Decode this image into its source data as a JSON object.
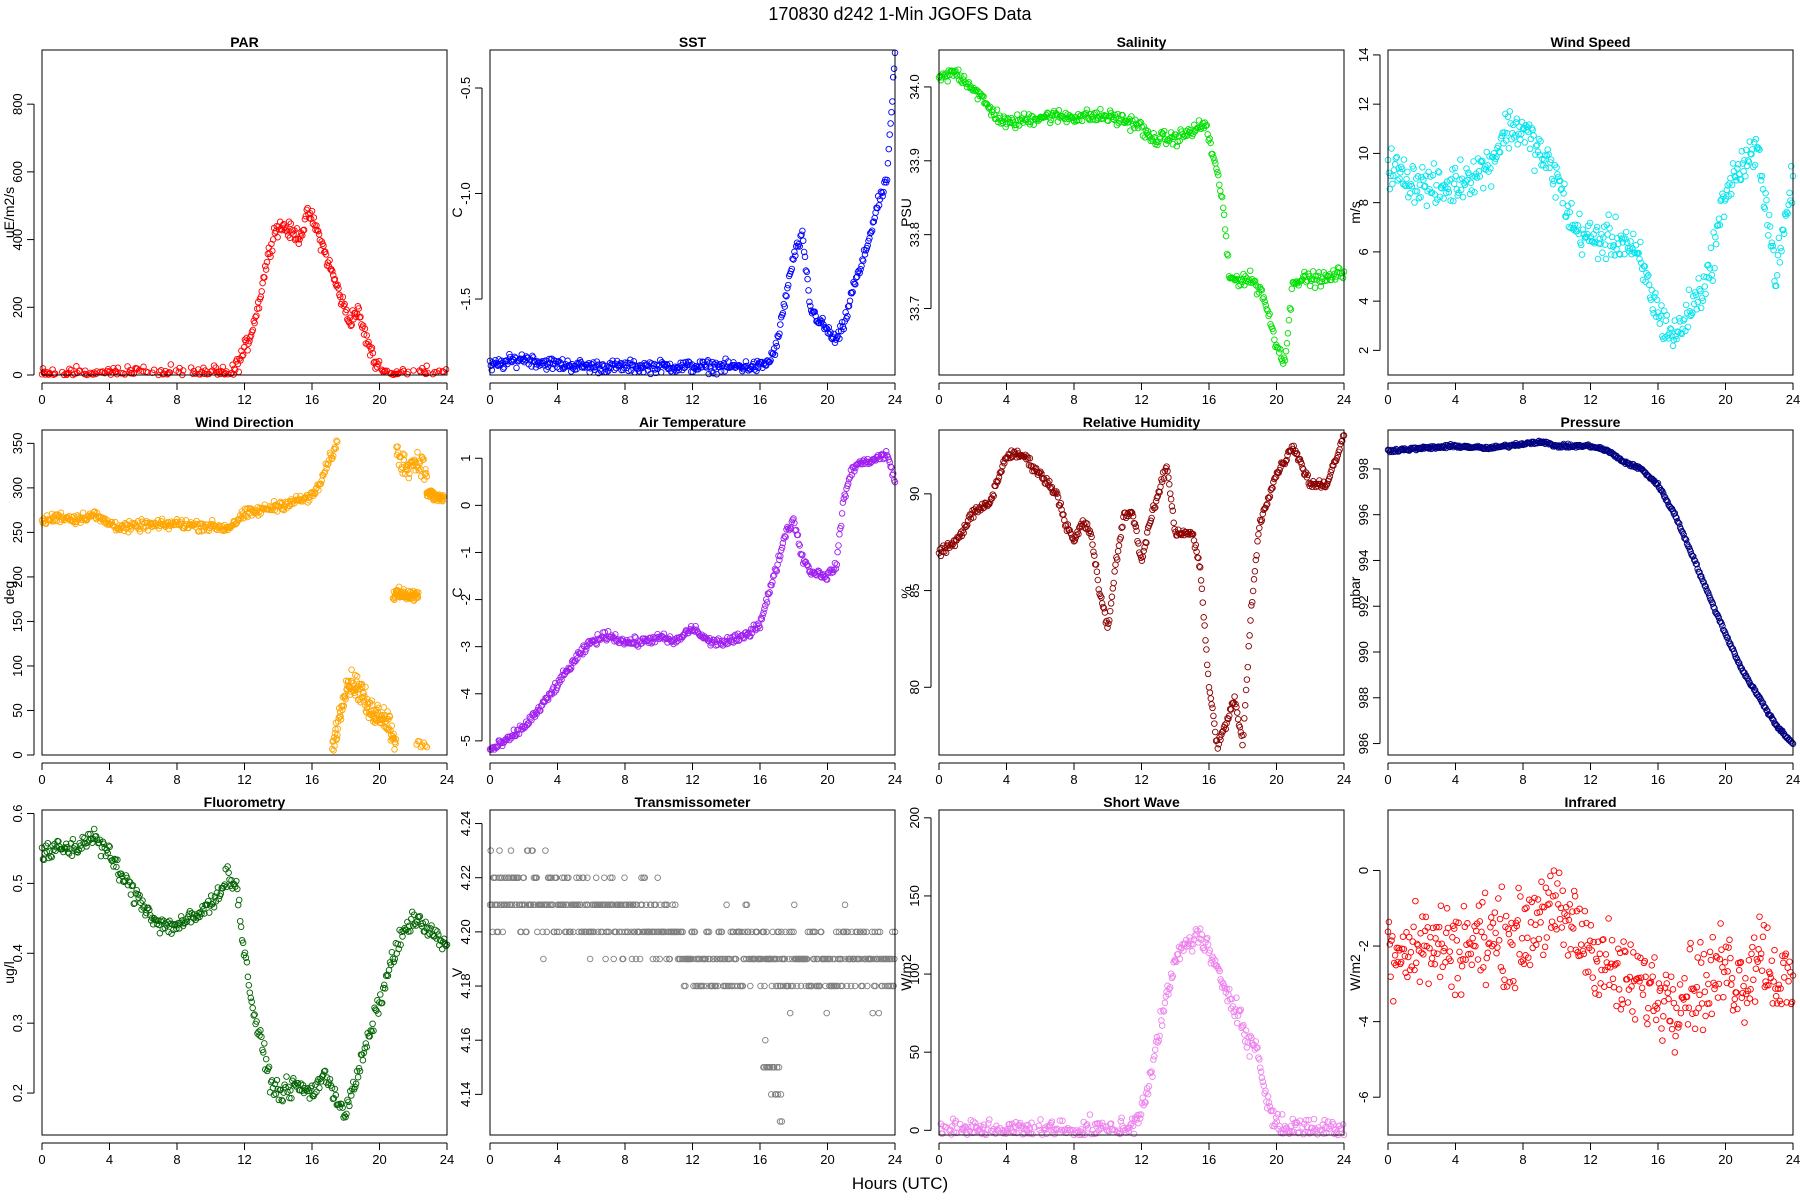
{
  "page": {
    "title": "170830   d242   1-Min  JGOFS Data",
    "xlabel": "Hours (UTC)"
  },
  "chart_data": [
    {
      "type": "scatter",
      "title": "PAR",
      "xlabel": "",
      "ylabel": "uE/m2/s",
      "color": "#ff0000",
      "xlim": [
        0,
        24
      ],
      "ylim": [
        0,
        960
      ],
      "xticks": [
        0,
        4,
        8,
        12,
        16,
        20,
        24
      ],
      "yticks": [
        0,
        200,
        400,
        600,
        800
      ],
      "noise": 20,
      "nsamp": 460,
      "x": [
        0,
        11.2,
        11.7,
        12.3,
        12.8,
        13.3,
        13.8,
        14.3,
        14.8,
        15.3,
        15.8,
        16.2,
        16.7,
        17.2,
        17.7,
        18.2,
        18.7,
        19.2,
        19.7,
        20.2,
        20.7,
        24
      ],
      "y": [
        0,
        0,
        40,
        110,
        200,
        330,
        430,
        440,
        420,
        410,
        480,
        440,
        370,
        300,
        230,
        160,
        190,
        110,
        40,
        10,
        0,
        0
      ]
    },
    {
      "type": "scatter",
      "title": "SST",
      "xlabel": "",
      "ylabel": "C",
      "color": "#0000ff",
      "xlim": [
        0,
        24
      ],
      "ylim": [
        -1.86,
        -0.32
      ],
      "xticks": [
        0,
        4,
        8,
        12,
        16,
        20,
        24
      ],
      "yticks": [
        -1.5,
        -1.0,
        -0.5
      ],
      "noise": 0.025,
      "nsamp": 460,
      "x": [
        0,
        1,
        2,
        3,
        4,
        6,
        8,
        10,
        12,
        14,
        16,
        16.5,
        17,
        17.5,
        18,
        18.5,
        19,
        19.5,
        20,
        20.5,
        21,
        21.5,
        22,
        22.5,
        23,
        23.5,
        23.8,
        24
      ],
      "y": [
        -1.82,
        -1.8,
        -1.78,
        -1.8,
        -1.81,
        -1.82,
        -1.82,
        -1.82,
        -1.82,
        -1.82,
        -1.82,
        -1.8,
        -1.72,
        -1.5,
        -1.3,
        -1.2,
        -1.55,
        -1.6,
        -1.65,
        -1.7,
        -1.62,
        -1.45,
        -1.35,
        -1.2,
        -1.05,
        -0.95,
        -0.6,
        -0.35
      ]
    },
    {
      "type": "scatter",
      "title": "Salinity",
      "xlabel": "",
      "ylabel": "PSU",
      "color": "#00e000",
      "xlim": [
        0,
        24
      ],
      "ylim": [
        33.61,
        34.05
      ],
      "xticks": [
        0,
        4,
        8,
        12,
        16,
        20,
        24
      ],
      "yticks": [
        33.7,
        33.8,
        33.9,
        34.0
      ],
      "noise": 0.008,
      "nsamp": 420,
      "x": [
        0,
        1,
        2,
        3,
        4,
        6,
        8,
        10,
        11.8,
        12.5,
        14,
        15,
        15.8,
        16.3,
        16.8,
        17.2,
        17.8,
        18.5,
        19.2,
        20,
        20.5,
        21,
        22,
        23,
        24
      ],
      "y": [
        34.01,
        34.02,
        34.0,
        33.97,
        33.95,
        33.96,
        33.96,
        33.96,
        33.95,
        33.93,
        33.93,
        33.94,
        33.95,
        33.9,
        33.85,
        33.74,
        33.74,
        33.74,
        33.72,
        33.65,
        33.63,
        33.74,
        33.74,
        33.74,
        33.75
      ]
    },
    {
      "type": "scatter",
      "title": "Wind Speed",
      "xlabel": "",
      "ylabel": "m/s",
      "color": "#00e5ee",
      "xlim": [
        0,
        24
      ],
      "ylim": [
        1,
        14.2
      ],
      "xticks": [
        0,
        4,
        8,
        12,
        16,
        20,
        24
      ],
      "yticks": [
        2,
        4,
        6,
        8,
        10,
        12,
        14
      ],
      "noise": 0.7,
      "nsamp": 460,
      "x": [
        0,
        1,
        2,
        3,
        4,
        5,
        6,
        7,
        8,
        9,
        10,
        11,
        12,
        13,
        14,
        15,
        16,
        17,
        18,
        19,
        20,
        21,
        22,
        23,
        24
      ],
      "y": [
        9.5,
        9.0,
        8.8,
        8.5,
        8.8,
        9.2,
        9.5,
        11.0,
        11.0,
        10.0,
        9.0,
        7.0,
        6.5,
        6.5,
        6.5,
        5.5,
        3.5,
        2.5,
        3.8,
        5.0,
        8.5,
        9.5,
        10.0,
        5.0,
        9.0
      ]
    },
    {
      "type": "scatter",
      "title": "Wind Direction",
      "xlabel": "",
      "ylabel": "deg",
      "color": "#ffa500",
      "xlim": [
        0,
        24
      ],
      "ylim": [
        0,
        365
      ],
      "xticks": [
        0,
        4,
        8,
        12,
        16,
        20,
        24
      ],
      "yticks": [
        0,
        50,
        100,
        150,
        200,
        250,
        300,
        350
      ],
      "noise": 5,
      "nsamp": 360,
      "x": [
        0,
        1,
        2,
        3,
        4,
        5,
        6,
        7,
        8,
        9,
        10,
        11,
        12,
        13,
        14,
        15,
        16,
        16.5,
        17,
        17.5
      ],
      "y": [
        262,
        268,
        265,
        270,
        260,
        255,
        258,
        258,
        260,
        258,
        257,
        255,
        270,
        275,
        280,
        285,
        290,
        305,
        330,
        350
      ],
      "extra_series": [
        {
          "x": [
            17.2,
            17.6,
            18.0,
            18.5,
            19.0,
            19.3,
            19.8,
            20.2,
            20.6,
            21.0
          ],
          "y": [
            10,
            40,
            80,
            80,
            70,
            50,
            48,
            45,
            35,
            10
          ],
          "nsamp": 140,
          "noise": 12
        },
        {
          "x": [
            20.8,
            21.5,
            22.3
          ],
          "y": [
            180,
            180,
            178
          ],
          "nsamp": 60,
          "noise": 6
        },
        {
          "x": [
            21.0,
            21.5,
            22.0,
            22.5,
            22.8
          ],
          "y": [
            340,
            325,
            328,
            330,
            310
          ],
          "nsamp": 50,
          "noise": 12
        },
        {
          "x": [
            22.8,
            23.3,
            23.8
          ],
          "y": [
            295,
            290,
            288
          ],
          "nsamp": 50,
          "noise": 5
        },
        {
          "x": [
            22.2,
            22.8
          ],
          "y": [
            15,
            10
          ],
          "nsamp": 8,
          "noise": 5
        }
      ]
    },
    {
      "type": "scatter",
      "title": "Air Temperature",
      "xlabel": "",
      "ylabel": "C",
      "color": "#a020f0",
      "xlim": [
        0,
        24
      ],
      "ylim": [
        -5.3,
        1.6
      ],
      "xticks": [
        0,
        4,
        8,
        12,
        16,
        20,
        24
      ],
      "yticks": [
        -5,
        -4,
        -3,
        -2,
        -1,
        0,
        1
      ],
      "noise": 0.08,
      "nsamp": 460,
      "x": [
        0,
        1,
        2,
        3,
        4,
        5,
        6,
        7,
        8,
        9,
        10,
        11,
        12,
        13,
        14,
        15,
        16,
        16.5,
        17,
        17.5,
        18,
        18.5,
        19,
        20,
        20.5,
        21,
        21.5,
        22,
        23,
        23.5,
        24
      ],
      "y": [
        -5.2,
        -5.0,
        -4.7,
        -4.3,
        -3.8,
        -3.3,
        -2.9,
        -2.75,
        -2.9,
        -2.9,
        -2.8,
        -2.9,
        -2.6,
        -2.9,
        -2.9,
        -2.8,
        -2.5,
        -1.9,
        -1.3,
        -0.6,
        -0.3,
        -1.1,
        -1.4,
        -1.5,
        -1.3,
        0.2,
        0.8,
        0.9,
        1.0,
        1.1,
        0.5
      ]
    },
    {
      "type": "scatter",
      "title": "Relative Humidity",
      "xlabel": "",
      "ylabel": "%",
      "color": "#8b0000",
      "xlim": [
        0,
        24
      ],
      "ylim": [
        76.5,
        93.3
      ],
      "xticks": [
        0,
        4,
        8,
        12,
        16,
        20,
        24
      ],
      "yticks": [
        80,
        85,
        90
      ],
      "noise": 0.2,
      "nsamp": 460,
      "x": [
        0,
        1,
        2,
        3,
        4,
        5,
        6,
        7,
        7.5,
        8,
        8.5,
        9,
        9.5,
        10,
        10.5,
        11,
        11.5,
        12,
        12.5,
        13,
        13.5,
        14,
        14.5,
        15,
        15.5,
        16,
        16.5,
        17,
        17.5,
        18,
        18.5,
        19,
        20,
        21,
        22,
        23,
        24
      ],
      "y": [
        87,
        87.5,
        89,
        89.5,
        92.0,
        92.0,
        91.0,
        90.0,
        88.5,
        87.5,
        88.5,
        88.0,
        85.0,
        83.0,
        86.5,
        89.0,
        89.0,
        86.5,
        88.5,
        90.0,
        91.5,
        88.0,
        88.0,
        88.0,
        86.0,
        80.0,
        77.0,
        78.0,
        79.5,
        77.0,
        84.0,
        88.5,
        91.0,
        92.5,
        90.5,
        90.5,
        93.0
      ]
    },
    {
      "type": "scatter",
      "title": "Pressure",
      "xlabel": "",
      "ylabel": "mbar",
      "color": "#000080",
      "xlim": [
        0,
        24
      ],
      "ylim": [
        985.5,
        999.7
      ],
      "xticks": [
        0,
        4,
        8,
        12,
        16,
        20,
        24
      ],
      "yticks": [
        986,
        988,
        990,
        992,
        994,
        996,
        998
      ],
      "noise": 0.06,
      "nsamp": 460,
      "x": [
        0,
        2,
        4,
        6,
        8,
        9,
        10,
        12,
        13,
        14,
        15,
        16,
        17,
        18,
        19,
        20,
        21,
        22,
        23,
        24
      ],
      "y": [
        998.8,
        998.9,
        999.0,
        998.9,
        999.1,
        999.2,
        999.0,
        999.0,
        998.8,
        998.3,
        998.0,
        997.3,
        996.0,
        994.3,
        992.5,
        990.8,
        989.2,
        988.0,
        986.8,
        986.0
      ]
    },
    {
      "type": "scatter",
      "title": "Fluorometry",
      "xlabel": "",
      "ylabel": "ug/l",
      "color": "#006400",
      "xlim": [
        0,
        24
      ],
      "ylim": [
        0.14,
        0.605
      ],
      "xticks": [
        0,
        4,
        8,
        12,
        16,
        20,
        24
      ],
      "yticks": [
        0.2,
        0.3,
        0.4,
        0.5,
        0.6
      ],
      "noise": 0.012,
      "nsamp": 420,
      "x": [
        0,
        1,
        2,
        3,
        4,
        5,
        6,
        7,
        8,
        9,
        10,
        11,
        11.5,
        12,
        12.5,
        13,
        13.5,
        14,
        15,
        16,
        16.5,
        17,
        17.5,
        18,
        18.5,
        19,
        20,
        21,
        22,
        23,
        24
      ],
      "y": [
        0.54,
        0.55,
        0.55,
        0.57,
        0.54,
        0.5,
        0.47,
        0.44,
        0.44,
        0.45,
        0.47,
        0.51,
        0.5,
        0.4,
        0.32,
        0.27,
        0.22,
        0.2,
        0.21,
        0.2,
        0.22,
        0.22,
        0.19,
        0.17,
        0.21,
        0.25,
        0.33,
        0.41,
        0.45,
        0.43,
        0.41
      ]
    },
    {
      "type": "scatter",
      "title": "Transmissometer",
      "xlabel": "",
      "ylabel": "V",
      "color": "#808080",
      "xlim": [
        0,
        24
      ],
      "ylim": [
        4.125,
        4.245
      ],
      "xticks": [
        0,
        4,
        8,
        12,
        16,
        20,
        24
      ],
      "yticks": [
        4.14,
        4.16,
        4.18,
        4.2,
        4.22,
        4.24
      ],
      "noise": 0.012,
      "nsamp": 600,
      "quantize": 0.01,
      "x": [
        0,
        4,
        8,
        11,
        11.8,
        16,
        17,
        24
      ],
      "y": [
        4.215,
        4.21,
        4.205,
        4.2,
        4.19,
        4.19,
        4.19,
        4.19
      ],
      "extra_series": [
        {
          "x": [
            16.2,
            17.3
          ],
          "y": [
            4.15,
            4.14
          ],
          "nsamp": 20,
          "noise": 0.012,
          "quantize": 0.01
        }
      ]
    },
    {
      "type": "scatter",
      "title": "Short Wave",
      "xlabel": "",
      "ylabel": "W/m2",
      "color": "#ee82ee",
      "xlim": [
        0,
        24
      ],
      "ylim": [
        -3,
        205
      ],
      "xticks": [
        0,
        4,
        8,
        12,
        16,
        20,
        24
      ],
      "yticks": [
        0,
        50,
        100,
        150,
        200
      ],
      "noise": 6,
      "nsamp": 460,
      "x": [
        0,
        11.2,
        11.8,
        12.3,
        12.8,
        13.3,
        13.8,
        14.3,
        14.8,
        15.3,
        15.8,
        16.3,
        16.8,
        17.3,
        17.8,
        18.3,
        18.8,
        19.3,
        19.8,
        20.3,
        24
      ],
      "y": [
        0,
        0,
        8,
        25,
        50,
        75,
        100,
        115,
        120,
        125,
        120,
        105,
        95,
        85,
        75,
        55,
        55,
        25,
        8,
        2,
        0
      ]
    },
    {
      "type": "scatter",
      "title": "Infrared",
      "xlabel": "",
      "ylabel": "W/m2",
      "color": "#ff0000",
      "xlim": [
        0,
        24
      ],
      "ylim": [
        -7.0,
        1.6
      ],
      "xticks": [
        0,
        4,
        8,
        12,
        16,
        20,
        24
      ],
      "yticks": [
        -6,
        -4,
        -2,
        0
      ],
      "noise": 1.0,
      "nsamp": 460,
      "x": [
        0,
        2,
        4,
        6,
        8,
        9,
        10,
        11,
        12,
        13,
        14,
        15,
        16,
        17,
        18,
        19,
        20,
        21,
        22,
        23,
        24
      ],
      "y": [
        -2.0,
        -2.0,
        -2.0,
        -1.8,
        -1.8,
        -1.0,
        -1.2,
        -1.5,
        -2.0,
        -2.5,
        -3.0,
        -3.0,
        -3.3,
        -3.3,
        -3.0,
        -3.0,
        -2.5,
        -3.0,
        -2.0,
        -2.8,
        -3.2
      ]
    }
  ]
}
